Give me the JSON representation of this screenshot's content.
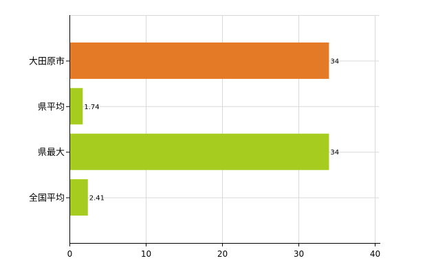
{
  "chart_data": {
    "type": "bar",
    "orientation": "horizontal",
    "categories": [
      "大田原市",
      "県平均",
      "県最大",
      "全国平均"
    ],
    "values": [
      34,
      1.74,
      34,
      2.41
    ],
    "data_labels": [
      "34",
      "1.74",
      "34",
      "2.41"
    ],
    "bar_colors": [
      "#e47a26",
      "#a5cc1e",
      "#a5cc1e",
      "#a5cc1e"
    ],
    "xlim": [
      0,
      40
    ],
    "xticks": [
      0,
      10,
      20,
      30,
      40
    ],
    "x_tick_labels": [
      "0",
      "10",
      "20",
      "30",
      "40"
    ],
    "grid": true,
    "legend": "none"
  }
}
